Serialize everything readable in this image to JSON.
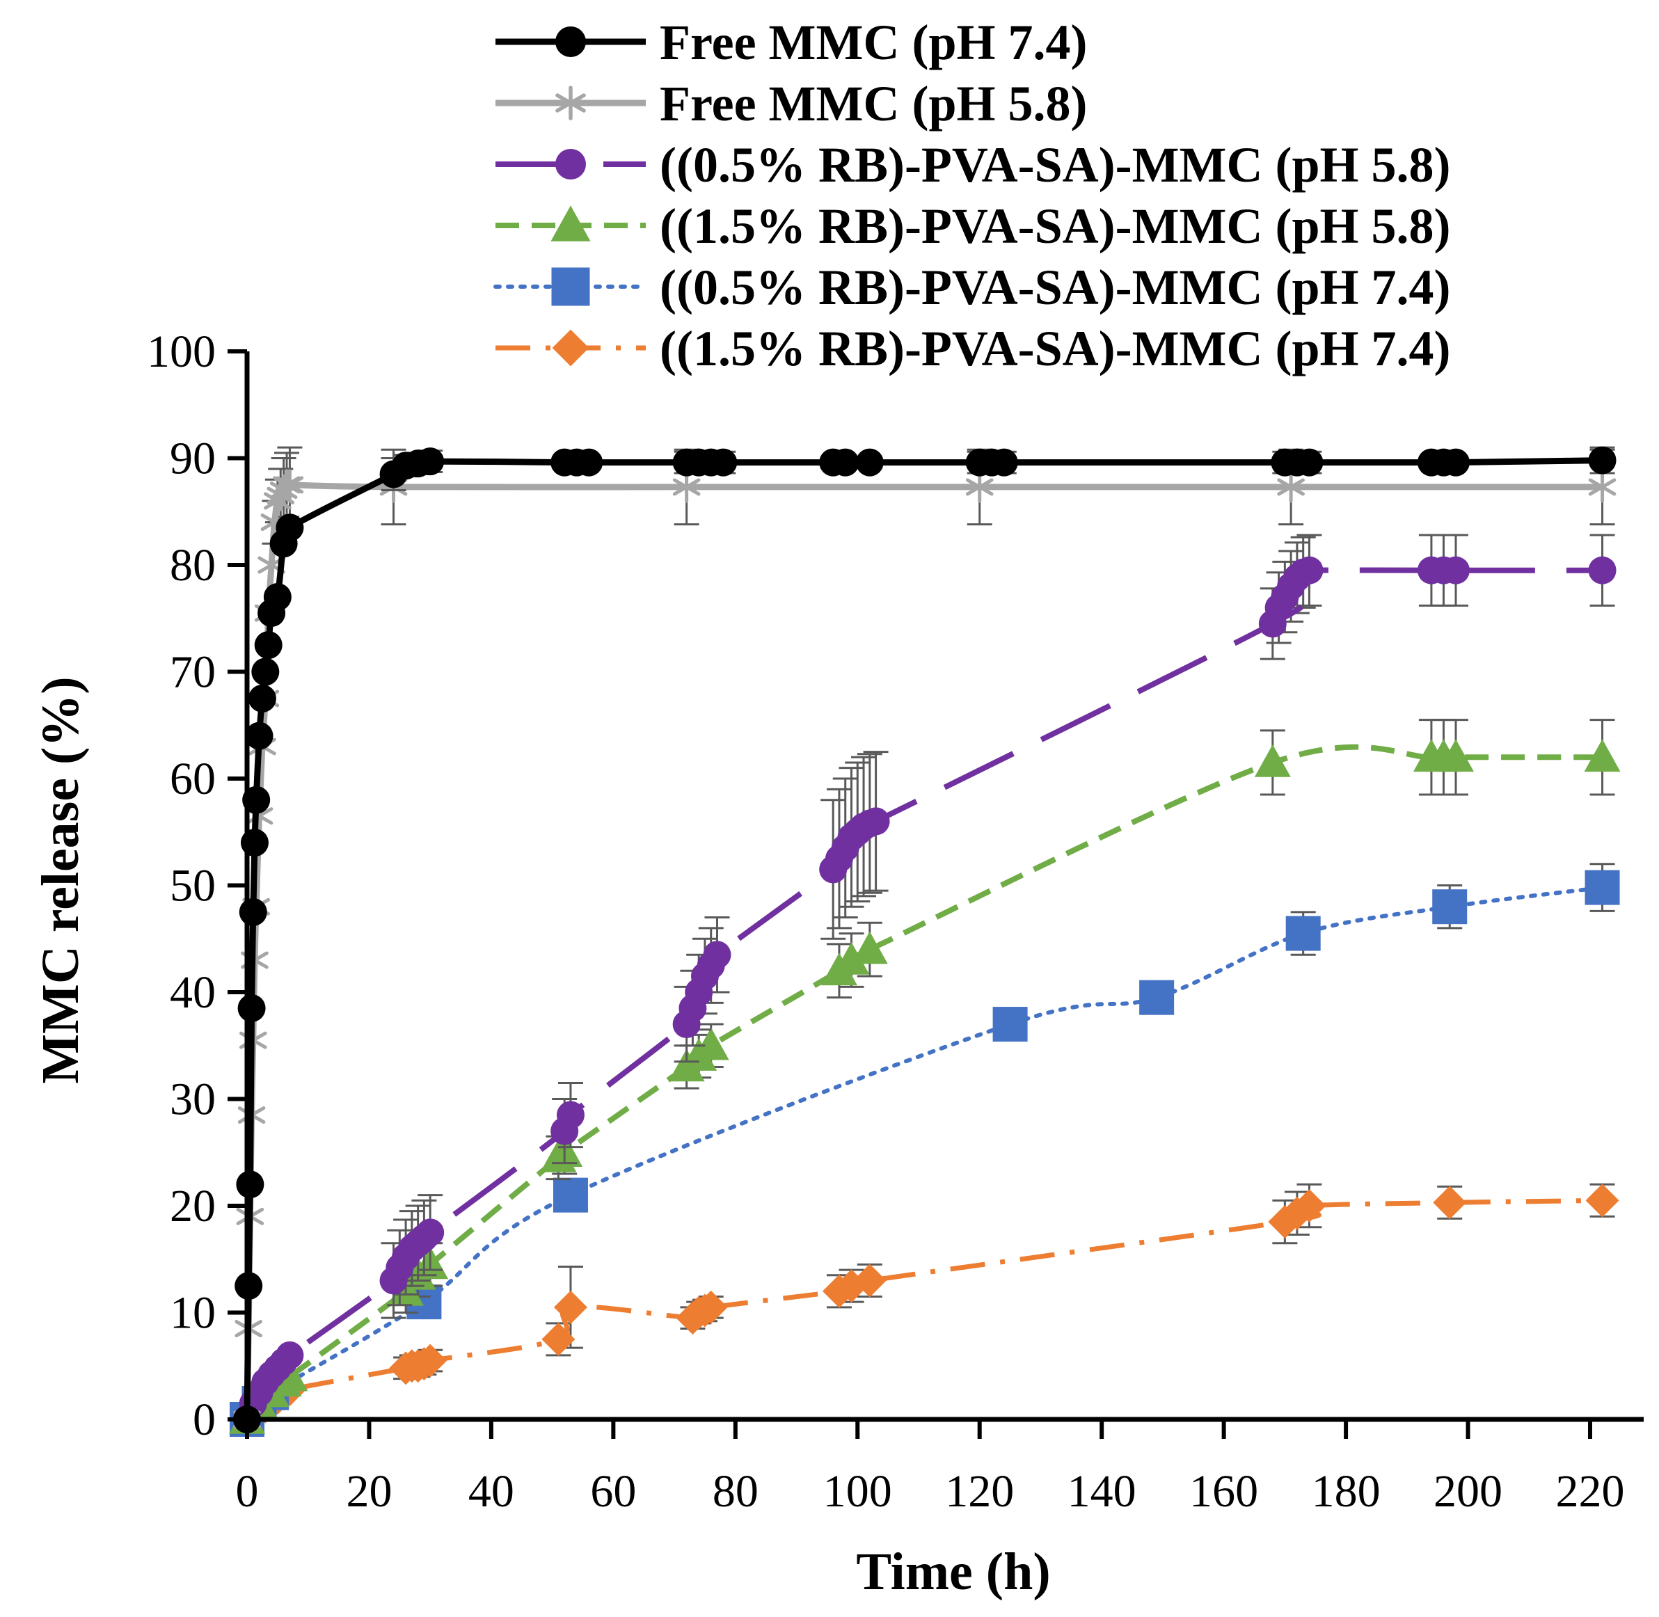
{
  "chart_data": {
    "type": "line",
    "title": "",
    "xlabel": "Time (h)",
    "ylabel": "MMC release (%)",
    "xlim": [
      0,
      220
    ],
    "ylim": [
      0,
      100
    ],
    "xticks": [
      0,
      20,
      40,
      60,
      80,
      100,
      120,
      140,
      160,
      180,
      200,
      220
    ],
    "yticks": [
      0,
      10,
      20,
      30,
      40,
      50,
      60,
      70,
      80,
      90,
      100
    ],
    "legend_position": "top",
    "series": [
      {
        "name": "Free MMC (pH 7.4)",
        "color": "#000000",
        "marker": "circle",
        "line_style": "solid",
        "x": [
          0,
          0.25,
          0.5,
          0.75,
          1,
          1.25,
          1.5,
          2,
          2.5,
          3,
          3.5,
          4,
          5,
          6,
          7,
          24,
          26,
          28,
          30,
          52,
          54,
          56,
          72,
          74,
          76,
          78,
          96,
          98,
          102,
          120,
          122,
          124,
          170,
          172,
          174,
          194,
          196,
          198,
          222
        ],
        "y": [
          0,
          12.5,
          22,
          38.5,
          47.5,
          54,
          58,
          64,
          67.5,
          70,
          72.5,
          75.5,
          77,
          82,
          83.5,
          88.5,
          89.3,
          89.5,
          89.7,
          89.6,
          89.6,
          89.6,
          89.6,
          89.6,
          89.6,
          89.6,
          89.6,
          89.6,
          89.6,
          89.6,
          89.6,
          89.6,
          89.6,
          89.6,
          89.6,
          89.6,
          89.6,
          89.6,
          89.8
        ],
        "error": [
          0,
          0,
          0,
          0,
          0,
          0,
          0,
          0,
          0,
          0,
          0,
          0,
          0,
          0,
          0,
          1.5,
          1,
          1,
          1,
          0.5,
          0.5,
          0.5,
          1,
          1,
          1,
          1,
          0.5,
          0.5,
          0.5,
          1,
          1,
          1,
          1,
          1,
          1,
          0.5,
          0.5,
          0.5,
          1.2
        ]
      },
      {
        "name": "Free MMC (pH 5.8)",
        "color": "#a6a6a6",
        "marker": "asterisk",
        "line_style": "solid",
        "x": [
          0,
          0.25,
          0.5,
          0.75,
          1,
          1.25,
          1.5,
          2,
          2.5,
          3,
          3.5,
          4,
          4.5,
          5,
          5.5,
          6,
          6.5,
          7,
          24,
          72,
          120,
          171,
          222
        ],
        "y": [
          0,
          8.5,
          19,
          28.5,
          35.5,
          43,
          48,
          56.5,
          63,
          67.5,
          75.5,
          80,
          84,
          86,
          86.5,
          87,
          87.5,
          87.5,
          87.3,
          87.3,
          87.3,
          87.3,
          87.3
        ],
        "error": [
          0,
          0,
          0,
          0,
          0,
          0,
          0,
          0,
          0,
          0,
          0,
          0,
          2,
          2,
          2.5,
          3,
          3,
          3.5,
          3.5,
          3.5,
          3.5,
          3.5,
          3.5
        ]
      },
      {
        "name": "((0.5% RB)-PVA-SA)-MMC (pH 5.8)",
        "color": "#7030a0",
        "marker": "circle",
        "line_style": "long-dash",
        "x": [
          0,
          1,
          2,
          3,
          4,
          5,
          6,
          7,
          24,
          25,
          26,
          27,
          28,
          29,
          30,
          52,
          53,
          72,
          73,
          74,
          75,
          76,
          77,
          96,
          97,
          98,
          99,
          100,
          101,
          102,
          103,
          168,
          169,
          170,
          171,
          172,
          173,
          174,
          194,
          196,
          198,
          222
        ],
        "y": [
          0,
          1.5,
          2.5,
          3.5,
          4.2,
          4.8,
          5.4,
          6,
          13,
          14.2,
          15.2,
          16,
          16.5,
          17,
          17.5,
          27,
          28.5,
          37,
          38.5,
          40,
          41.5,
          42.5,
          43.5,
          51.5,
          52.5,
          53.5,
          54.5,
          55,
          55.5,
          55.8,
          56,
          74.5,
          76,
          77,
          78,
          78.8,
          79.3,
          79.5,
          79.5,
          79.5,
          79.5,
          79.5
        ],
        "error": [
          0,
          0,
          0,
          0,
          0,
          0,
          0,
          0,
          3.5,
          3.5,
          3.5,
          3.5,
          3.5,
          3.5,
          3.5,
          3,
          3,
          3.5,
          3.5,
          3.5,
          3.5,
          3.5,
          3.5,
          6.5,
          6.5,
          6.5,
          6.5,
          6.5,
          6.5,
          6.5,
          6.5,
          3.3,
          3.3,
          3.3,
          3.3,
          3.3,
          3.3,
          3.3,
          3.3,
          3.3,
          3.3,
          3.3
        ]
      },
      {
        "name": "((1.5% RB)-PVA-SA)-MMC (pH 5.8)",
        "color": "#70ad47",
        "marker": "triangle",
        "line_style": "dashed",
        "x": [
          0,
          2,
          4,
          6,
          7,
          26,
          28,
          30,
          51,
          52,
          72,
          74,
          76,
          97,
          99,
          102,
          168,
          194,
          196,
          198,
          222
        ],
        "y": [
          0,
          1.5,
          2.5,
          3.5,
          4,
          12,
          13.5,
          14.5,
          24.5,
          25,
          33,
          34,
          35,
          42,
          43,
          44,
          61.5,
          62,
          62,
          62,
          62
        ],
        "error": [
          0,
          0,
          0,
          0,
          0,
          2,
          2,
          2,
          2,
          2,
          2,
          2,
          2,
          2.5,
          2.5,
          2.5,
          3,
          3.5,
          3.5,
          3.5,
          3.5
        ]
      },
      {
        "name": "((0.5% RB)-PVA-SA)-MMC (pH 7.4)",
        "color": "#4472c4",
        "marker": "square",
        "line_style": "dotted",
        "x": [
          0,
          2,
          4,
          29,
          53,
          125,
          149,
          173,
          197,
          222
        ],
        "y": [
          0,
          1.5,
          2.5,
          11,
          21,
          37,
          39.5,
          45.5,
          48,
          49.8
        ],
        "error": [
          0,
          0,
          0,
          0,
          0,
          1,
          1.5,
          2,
          2,
          2.2
        ]
      },
      {
        "name": "((1.5% RB)-PVA-SA)-MMC (pH 7.4)",
        "color": "#ed7d31",
        "marker": "diamond",
        "line_style": "dash-dot",
        "x": [
          0,
          1,
          2,
          3,
          4,
          5,
          6,
          7,
          26,
          27,
          28,
          29,
          30,
          51,
          53,
          73,
          74,
          75,
          76,
          97,
          99,
          102,
          170,
          172,
          174,
          197,
          222
        ],
        "y": [
          0,
          0.5,
          0.8,
          1.2,
          1.6,
          2,
          2.4,
          2.8,
          4.8,
          5,
          5,
          5.2,
          5.5,
          7.5,
          10.5,
          9.5,
          10,
          10.2,
          10.5,
          12,
          12.5,
          13,
          18.5,
          19.3,
          20,
          20.3,
          20.5
        ],
        "error": [
          0,
          0,
          0,
          0,
          0,
          0,
          0,
          0,
          1,
          1,
          1,
          1,
          1,
          1.5,
          3.8,
          1,
          1,
          1,
          1,
          1.5,
          1.5,
          1.5,
          2,
          2,
          2,
          1.5,
          1.5
        ]
      }
    ]
  }
}
